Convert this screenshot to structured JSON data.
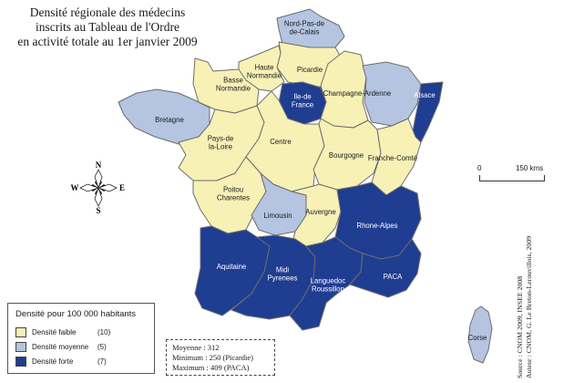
{
  "title": {
    "line1": "Densité régionale des médecins",
    "line2": "inscrits au Tableau de l'Ordre",
    "line3": "en activité totale au 1er janvier 2009"
  },
  "colors": {
    "faible": "#f7f1b6",
    "moyenne": "#b4c4e1",
    "forte": "#1f3d91",
    "border": "#6d6d6d"
  },
  "regions": [
    {
      "id": "nord-pas-de-calais",
      "label_lines": [
        "Nord-Pas-de",
        "de-Calais"
      ],
      "category": "moyenne"
    },
    {
      "id": "picardie",
      "label_lines": [
        "Picardie"
      ],
      "category": "faible"
    },
    {
      "id": "haute-normandie",
      "label_lines": [
        "Haute",
        "Normandie"
      ],
      "category": "faible"
    },
    {
      "id": "basse-normandie",
      "label_lines": [
        "Basse",
        "Normandie"
      ],
      "category": "faible"
    },
    {
      "id": "bretagne",
      "label_lines": [
        "Bretagne"
      ],
      "category": "moyenne"
    },
    {
      "id": "ile-de-france",
      "label_lines": [
        "Ile-de",
        "France"
      ],
      "category": "forte"
    },
    {
      "id": "champagne-ardenne",
      "label_lines": [
        "Champagne-Ardenne"
      ],
      "category": "faible"
    },
    {
      "id": "lorraine",
      "label_lines": [],
      "category": "moyenne"
    },
    {
      "id": "alsace",
      "label_lines": [
        "Alsace"
      ],
      "category": "forte"
    },
    {
      "id": "pays-de-la-loire",
      "label_lines": [
        "Pays-de",
        "la-Loire"
      ],
      "category": "faible"
    },
    {
      "id": "centre",
      "label_lines": [
        "Centre"
      ],
      "category": "faible"
    },
    {
      "id": "bourgogne",
      "label_lines": [
        "Bourgogne"
      ],
      "category": "faible"
    },
    {
      "id": "franche-comte",
      "label_lines": [
        "Franche-Comté"
      ],
      "category": "faible"
    },
    {
      "id": "poitou-charentes",
      "label_lines": [
        "Poitou",
        "Charentes"
      ],
      "category": "faible"
    },
    {
      "id": "limousin",
      "label_lines": [
        "Limousin"
      ],
      "category": "moyenne"
    },
    {
      "id": "auvergne",
      "label_lines": [
        "Auvergne"
      ],
      "category": "faible"
    },
    {
      "id": "rhone-alpes",
      "label_lines": [
        "Rhone-Alpes"
      ],
      "category": "forte"
    },
    {
      "id": "aquitaine",
      "label_lines": [
        "Aquitaine"
      ],
      "category": "forte"
    },
    {
      "id": "midi-pyrenees",
      "label_lines": [
        "Midi",
        "Pyrenees"
      ],
      "category": "forte"
    },
    {
      "id": "languedoc-roussillon",
      "label_lines": [
        "Languedoc",
        "Roussillon"
      ],
      "category": "forte"
    },
    {
      "id": "paca",
      "label_lines": [
        "PACA"
      ],
      "category": "forte"
    },
    {
      "id": "corse",
      "label_lines": [
        "Corse"
      ],
      "category": "moyenne"
    }
  ],
  "legend": {
    "title": "Densité pour 100 000 habitants",
    "items": [
      {
        "label": "Densité faible",
        "count": "(10)",
        "category": "faible"
      },
      {
        "label": "Densité moyenne",
        "count": "(5)",
        "category": "moyenne"
      },
      {
        "label": "Densité forte",
        "count": "(7)",
        "category": "forte"
      }
    ]
  },
  "stats": {
    "moyenne": "Moyenne : 312",
    "minimum": "Minimum : 250 (Picardie)",
    "maximum": "Maximum : 409 (PACA)"
  },
  "scale": {
    "start": "0",
    "end": "150 kms"
  },
  "compass": {
    "n": "N",
    "s": "S",
    "e": "E",
    "w": "W"
  },
  "source": {
    "line1": "Source : CNOM 2009, INSEE 2008",
    "line2": "Auteur : CNOM, G. Le Breton-Lerouvillois, 2009"
  }
}
